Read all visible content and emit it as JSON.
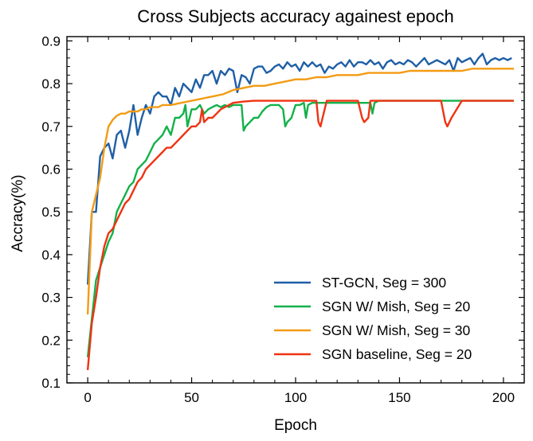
{
  "chart_data": {
    "type": "line",
    "title": "Cross Subjects accuracy againest epoch",
    "xlabel": "Epoch",
    "ylabel": "Accracy(%)",
    "xlim": [
      -10,
      210
    ],
    "ylim": [
      0.1,
      0.91
    ],
    "xticks": [
      0,
      50,
      100,
      150,
      200
    ],
    "yticks": [
      0.1,
      0.2,
      0.3,
      0.4,
      0.5,
      0.6,
      0.7,
      0.8,
      0.9
    ],
    "xtick_labels": [
      "0",
      "50",
      "100",
      "150",
      "200"
    ],
    "ytick_labels": [
      "0.1",
      "0.2",
      "0.3",
      "0.4",
      "0.5",
      "0.6",
      "0.7",
      "0.8",
      "0.9"
    ],
    "grid": false,
    "legend_position": "lower-right",
    "series": [
      {
        "name": "ST-GCN, Seg = 300",
        "color": "#1f5fa6",
        "x": [
          0,
          2,
          4,
          6,
          8,
          10,
          12,
          14,
          16,
          18,
          20,
          22,
          24,
          26,
          28,
          30,
          32,
          34,
          36,
          38,
          40,
          42,
          44,
          46,
          48,
          50,
          52,
          54,
          56,
          58,
          60,
          62,
          64,
          66,
          68,
          70,
          72,
          74,
          76,
          78,
          80,
          82,
          84,
          86,
          88,
          90,
          92,
          94,
          96,
          98,
          100,
          102,
          104,
          106,
          108,
          110,
          112,
          114,
          116,
          118,
          120,
          122,
          124,
          126,
          128,
          130,
          132,
          134,
          136,
          138,
          140,
          142,
          144,
          146,
          148,
          150,
          152,
          154,
          156,
          158,
          160,
          162,
          164,
          166,
          168,
          170,
          172,
          174,
          176,
          178,
          180,
          182,
          184,
          186,
          188,
          190,
          192,
          194,
          196,
          198,
          200,
          202,
          204
        ],
        "y": [
          0.33,
          0.5,
          0.5,
          0.63,
          0.65,
          0.66,
          0.625,
          0.68,
          0.69,
          0.65,
          0.69,
          0.75,
          0.68,
          0.72,
          0.75,
          0.73,
          0.77,
          0.78,
          0.77,
          0.77,
          0.75,
          0.79,
          0.77,
          0.8,
          0.79,
          0.78,
          0.81,
          0.79,
          0.82,
          0.82,
          0.83,
          0.8,
          0.83,
          0.82,
          0.835,
          0.83,
          0.78,
          0.82,
          0.815,
          0.8,
          0.835,
          0.84,
          0.84,
          0.825,
          0.83,
          0.84,
          0.845,
          0.835,
          0.85,
          0.84,
          0.845,
          0.83,
          0.85,
          0.84,
          0.85,
          0.84,
          0.845,
          0.825,
          0.84,
          0.835,
          0.845,
          0.85,
          0.84,
          0.855,
          0.84,
          0.85,
          0.85,
          0.845,
          0.855,
          0.845,
          0.85,
          0.835,
          0.85,
          0.855,
          0.845,
          0.85,
          0.845,
          0.855,
          0.85,
          0.84,
          0.85,
          0.86,
          0.845,
          0.85,
          0.855,
          0.85,
          0.845,
          0.855,
          0.83,
          0.86,
          0.85,
          0.855,
          0.86,
          0.845,
          0.86,
          0.87,
          0.845,
          0.855,
          0.86,
          0.855,
          0.86,
          0.855,
          0.86
        ]
      },
      {
        "name": "SGN W/ Mish, Seg = 20",
        "color": "#13b14a",
        "x": [
          0,
          2,
          4,
          6,
          8,
          10,
          12,
          14,
          16,
          18,
          20,
          22,
          24,
          26,
          28,
          30,
          32,
          34,
          36,
          38,
          40,
          42,
          44,
          46,
          47,
          48,
          50,
          52,
          54,
          56,
          58,
          60,
          62,
          64,
          66,
          68,
          70,
          72,
          74,
          75,
          76,
          78,
          80,
          82,
          84,
          86,
          88,
          90,
          92,
          94,
          95,
          96,
          98,
          100,
          102,
          104,
          105,
          106,
          108,
          110,
          112,
          114,
          116,
          118,
          120,
          122,
          124,
          126,
          128,
          130,
          132,
          134,
          136,
          137,
          138,
          140,
          145,
          150,
          160,
          170,
          180,
          190,
          200,
          205
        ],
        "y": [
          0.16,
          0.25,
          0.34,
          0.37,
          0.4,
          0.43,
          0.45,
          0.5,
          0.52,
          0.54,
          0.56,
          0.57,
          0.6,
          0.61,
          0.62,
          0.64,
          0.66,
          0.67,
          0.68,
          0.7,
          0.68,
          0.72,
          0.72,
          0.73,
          0.75,
          0.7,
          0.74,
          0.74,
          0.75,
          0.73,
          0.74,
          0.745,
          0.75,
          0.745,
          0.75,
          0.745,
          0.75,
          0.75,
          0.75,
          0.69,
          0.7,
          0.71,
          0.72,
          0.72,
          0.735,
          0.745,
          0.75,
          0.75,
          0.75,
          0.74,
          0.7,
          0.71,
          0.72,
          0.75,
          0.75,
          0.755,
          0.72,
          0.75,
          0.755,
          0.755,
          0.755,
          0.755,
          0.755,
          0.755,
          0.755,
          0.755,
          0.755,
          0.755,
          0.755,
          0.755,
          0.755,
          0.755,
          0.755,
          0.73,
          0.755,
          0.76,
          0.76,
          0.76,
          0.76,
          0.76,
          0.76,
          0.76,
          0.76,
          0.76
        ]
      },
      {
        "name": "SGN W/ Mish, Seg = 30",
        "color": "#f39b13",
        "x": [
          0,
          2,
          4,
          6,
          8,
          10,
          12,
          14,
          16,
          18,
          20,
          22,
          24,
          26,
          28,
          30,
          32,
          34,
          36,
          38,
          40,
          45,
          50,
          55,
          60,
          65,
          70,
          75,
          80,
          85,
          90,
          95,
          100,
          105,
          110,
          115,
          120,
          125,
          130,
          135,
          140,
          145,
          150,
          155,
          160,
          165,
          170,
          175,
          180,
          185,
          190,
          195,
          200,
          205
        ],
        "y": [
          0.26,
          0.5,
          0.54,
          0.58,
          0.65,
          0.7,
          0.715,
          0.725,
          0.73,
          0.73,
          0.735,
          0.735,
          0.735,
          0.74,
          0.74,
          0.745,
          0.745,
          0.745,
          0.75,
          0.75,
          0.75,
          0.755,
          0.76,
          0.765,
          0.77,
          0.775,
          0.785,
          0.79,
          0.795,
          0.795,
          0.8,
          0.805,
          0.81,
          0.81,
          0.815,
          0.815,
          0.82,
          0.82,
          0.82,
          0.825,
          0.825,
          0.825,
          0.825,
          0.83,
          0.83,
          0.83,
          0.83,
          0.83,
          0.83,
          0.835,
          0.835,
          0.835,
          0.835,
          0.835
        ]
      },
      {
        "name": "SGN baseline, Seg = 20",
        "color": "#ef3312",
        "x": [
          0,
          2,
          4,
          6,
          8,
          10,
          12,
          14,
          16,
          18,
          20,
          22,
          24,
          26,
          28,
          30,
          32,
          34,
          36,
          38,
          40,
          42,
          44,
          46,
          48,
          50,
          52,
          54,
          55,
          56,
          58,
          60,
          62,
          64,
          66,
          68,
          70,
          75,
          80,
          85,
          90,
          95,
          100,
          105,
          110,
          111,
          112,
          113,
          115,
          120,
          125,
          130,
          132,
          133,
          135,
          136,
          140,
          150,
          160,
          170,
          172,
          173,
          175,
          180,
          185,
          190,
          200,
          205
        ],
        "y": [
          0.13,
          0.24,
          0.3,
          0.37,
          0.42,
          0.45,
          0.46,
          0.48,
          0.5,
          0.52,
          0.53,
          0.55,
          0.57,
          0.58,
          0.6,
          0.61,
          0.62,
          0.63,
          0.64,
          0.65,
          0.65,
          0.66,
          0.67,
          0.68,
          0.69,
          0.7,
          0.7,
          0.71,
          0.74,
          0.71,
          0.72,
          0.72,
          0.73,
          0.74,
          0.745,
          0.75,
          0.755,
          0.758,
          0.76,
          0.76,
          0.76,
          0.76,
          0.76,
          0.76,
          0.76,
          0.71,
          0.7,
          0.72,
          0.76,
          0.76,
          0.76,
          0.76,
          0.72,
          0.71,
          0.72,
          0.76,
          0.76,
          0.76,
          0.76,
          0.76,
          0.71,
          0.7,
          0.72,
          0.76,
          0.76,
          0.76,
          0.76,
          0.76
        ]
      }
    ]
  }
}
